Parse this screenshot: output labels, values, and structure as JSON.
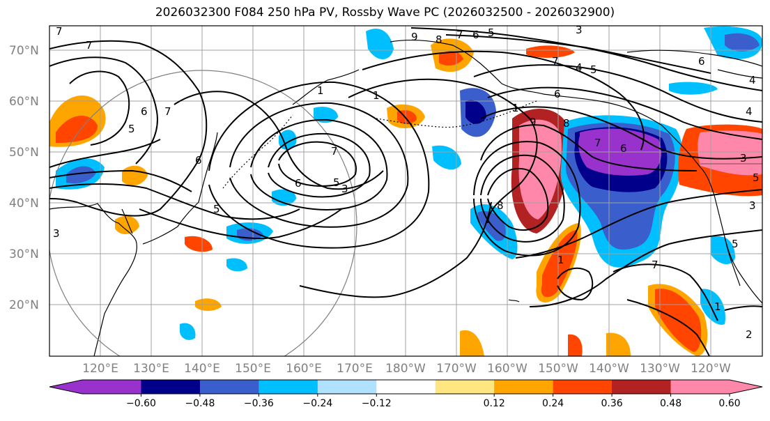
{
  "title": "2026032300 F084 250 hPa PV, Rossby Wave PC (2026032500 - 2026032900)",
  "lat_labels": [
    "70°N",
    "60°N",
    "50°N",
    "40°N",
    "30°N",
    "20°N"
  ],
  "lon_labels": [
    "120°E",
    "130°E",
    "140°E",
    "150°E",
    "160°E",
    "170°E",
    "180°W",
    "170°W",
    "160°W",
    "150°W",
    "140°W",
    "130°W",
    "120°W"
  ],
  "colorbar": {
    "tick_labels": [
      "−0.60",
      "−0.48",
      "−0.36",
      "−0.24",
      "−0.12",
      "0.12",
      "0.24",
      "0.36",
      "0.48",
      "0.60"
    ],
    "colors": [
      "#9932CC",
      "#00008B",
      "#3A5FCD",
      "#00BFFF",
      "#B0E2FF",
      "#FFFFFF",
      "#FFE680",
      "#FFA500",
      "#FF4500",
      "#B22222",
      "#FF88AA"
    ]
  },
  "contour_labels": [
    "7",
    "7",
    "6",
    "5",
    "1",
    "9",
    "8",
    "7",
    "6",
    "5",
    "3",
    "7",
    "4",
    "5",
    "6",
    "1",
    "6",
    "7",
    "6",
    "5",
    "3",
    "1",
    "8",
    "7",
    "6",
    "5",
    "4",
    "3",
    "5",
    "7",
    "1",
    "6",
    "7",
    "4",
    "5",
    "3",
    "2",
    "1",
    "3",
    "9",
    "8"
  ],
  "colors": {
    "grid": "#a0a0a0",
    "coast": "#000000",
    "contour": "#000000",
    "circle": "#808080",
    "axis_text": "#808080"
  }
}
